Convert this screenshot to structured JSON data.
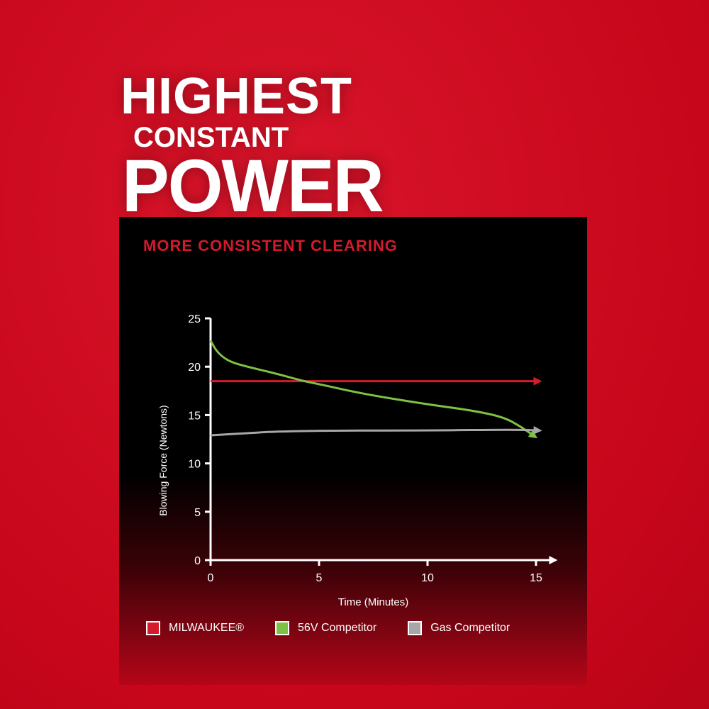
{
  "headline": {
    "line1": "HIGHEST",
    "line2": "CONSTANT",
    "line3": "POWER"
  },
  "chart_data": {
    "type": "line",
    "title": "MORE CONSISTENT CLEARING",
    "xlabel": "Time (Minutes)",
    "ylabel": "Blowing Force (Newtons)",
    "xlim": [
      0,
      15
    ],
    "ylim": [
      0,
      25
    ],
    "xticks": [
      "0",
      "5",
      "10",
      "15"
    ],
    "yticks": [
      "0",
      "5",
      "10",
      "15",
      "20",
      "25"
    ],
    "grid": false,
    "legend_placement": "bottom",
    "series": [
      {
        "name": "MILWAUKEE®",
        "color": "#d7192d",
        "x": [
          0,
          15.2
        ],
        "y": [
          18.5,
          18.5
        ]
      },
      {
        "name": "56V Competitor",
        "color": "#7dc243",
        "x": [
          0,
          0.3,
          0.8,
          1.5,
          3,
          4.3,
          5,
          7,
          10,
          12,
          13.5,
          14.3,
          15
        ],
        "y": [
          22.7,
          21.5,
          20.6,
          20.1,
          19.3,
          18.5,
          18.2,
          17.2,
          16.1,
          15.5,
          14.8,
          13.8,
          12.7
        ]
      },
      {
        "name": "Gas Competitor",
        "color": "#a7a7a7",
        "x": [
          0,
          1.5,
          3,
          6,
          10,
          14,
          15.2
        ],
        "y": [
          12.9,
          13.1,
          13.3,
          13.4,
          13.4,
          13.5,
          13.4
        ]
      }
    ]
  }
}
